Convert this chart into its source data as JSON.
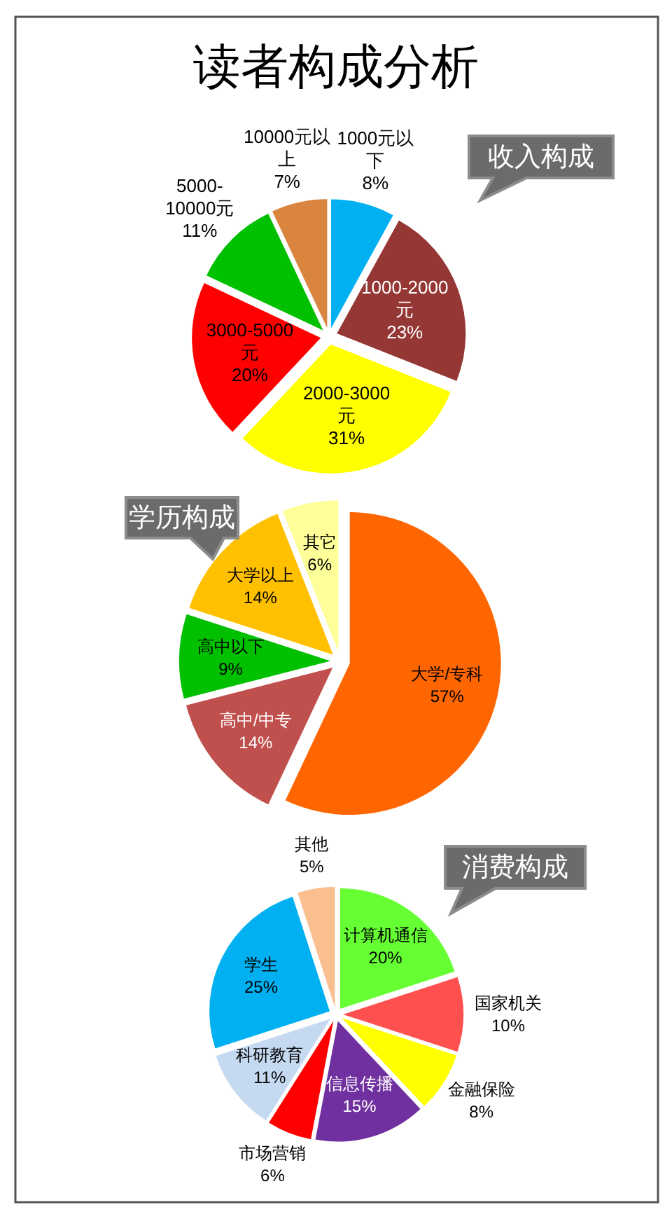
{
  "chart_data": [
    {
      "type": "other",
      "title": "读者构成分析"
    },
    {
      "type": "pie",
      "title": "收入构成",
      "categories": [
        "1000元以下",
        "1000-2000元",
        "2000-3000元",
        "3000-5000元",
        "5000-10000元",
        "10000元以上"
      ],
      "values": [
        8,
        23,
        31,
        20,
        11,
        7
      ],
      "value_labels": [
        "8%",
        "23%",
        "31%",
        "20%",
        "11%",
        "7%"
      ],
      "colors": [
        "#00b0f0",
        "#953735",
        "#ffff00",
        "#ff0000",
        "#00c000",
        "#d9843f"
      ]
    },
    {
      "type": "pie",
      "title": "学历构成",
      "categories": [
        "大学/专科",
        "高中/中专",
        "高中以下",
        "大学以上",
        "其它"
      ],
      "values": [
        57,
        14,
        9,
        14,
        6
      ],
      "value_labels": [
        "57%",
        "14%",
        "9%",
        "14%",
        "6%"
      ],
      "colors": [
        "#ff6600",
        "#c0504d",
        "#00c000",
        "#ffc000",
        "#ffff99"
      ]
    },
    {
      "type": "pie",
      "title": "消费构成",
      "categories": [
        "计算机通信",
        "国家机关",
        "金融保险",
        "信息传播",
        "市场营销",
        "科研教育",
        "学生",
        "其他"
      ],
      "values": [
        20,
        10,
        8,
        15,
        6,
        11,
        25,
        5
      ],
      "value_labels": [
        "20%",
        "10%",
        "8%",
        "15%",
        "6%",
        "11%",
        "25%",
        "5%"
      ],
      "colors": [
        "#66ff33",
        "#ff5050",
        "#ffff00",
        "#7030a0",
        "#ff0000",
        "#c5d9f1",
        "#00b0f0",
        "#fabf8f"
      ]
    }
  ]
}
